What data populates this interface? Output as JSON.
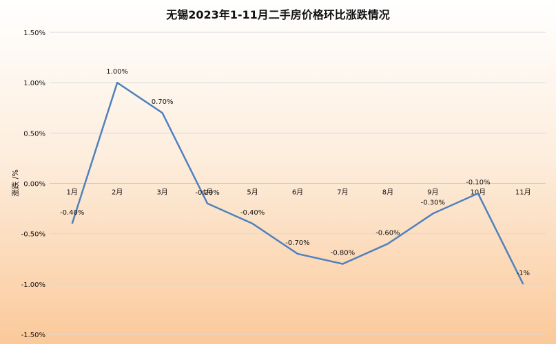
{
  "chart_data": {
    "type": "line",
    "title": "无锡2023年1-11月二手房价格环比涨跌情况",
    "ylabel": "涨跌 /%",
    "xlabel": "",
    "categories": [
      "1月",
      "2月",
      "3月",
      "4月",
      "5月",
      "6月",
      "7月",
      "8月",
      "9月",
      "10月",
      "11月"
    ],
    "series": [
      {
        "values": [
          -0.4,
          1.0,
          0.7,
          -0.2,
          -0.4,
          -0.7,
          -0.8,
          -0.6,
          -0.3,
          -0.1,
          -1.0
        ],
        "data_labels": [
          "-0.40%",
          "1.00%",
          "0.70%",
          "-0.20%",
          "-0.40%",
          "-0.70%",
          "-0.80%",
          "-0.60%",
          "-0.30%",
          "-0.10%",
          "-1%"
        ],
        "color": "#4f81bd"
      }
    ],
    "ylim": [
      -1.5,
      1.5
    ],
    "yticks": [
      1.5,
      1.0,
      0.5,
      0.0,
      -0.5,
      -1.0,
      -1.5
    ],
    "ytick_labels": [
      "1.50%",
      "1.00%",
      "0.50%",
      "0.00%",
      "-0.50%",
      "-1.00%",
      "-1.50%"
    ],
    "grid": true,
    "legend": "none",
    "colors": {
      "line": "#4f81bd",
      "grid": "#d9d9d9",
      "background_top": "#ffffff",
      "background_bottom": "#fbc99a"
    }
  }
}
